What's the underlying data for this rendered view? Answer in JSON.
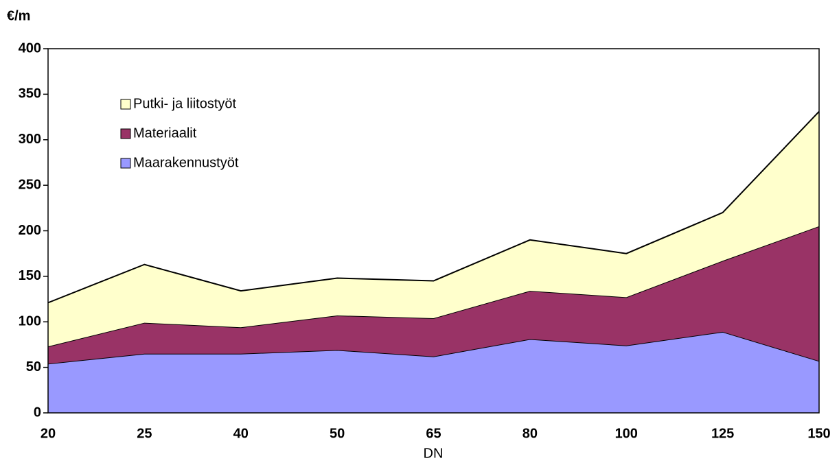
{
  "chart_data": {
    "type": "stacked_area",
    "y_label": "€/m",
    "x_label": "DN",
    "categories": [
      "20",
      "25",
      "40",
      "50",
      "65",
      "80",
      "100",
      "125",
      "150"
    ],
    "series": [
      {
        "name": "Maarakennustyöt",
        "color": "#9999ff",
        "values": [
          54,
          65,
          65,
          69,
          62,
          81,
          74,
          89,
          57
        ]
      },
      {
        "name": "Materiaalit",
        "color": "#993366",
        "values": [
          19,
          34,
          29,
          38,
          42,
          53,
          53,
          78,
          148
        ]
      },
      {
        "name": "Putki- ja liitostyöt",
        "color": "#ffffcc",
        "values": [
          48,
          64,
          40,
          41,
          41,
          56,
          48,
          53,
          126
        ]
      }
    ],
    "ylim": [
      0,
      400
    ],
    "yticks": [
      0,
      50,
      100,
      150,
      200,
      250,
      300,
      350,
      400
    ],
    "legend": "upper left"
  }
}
